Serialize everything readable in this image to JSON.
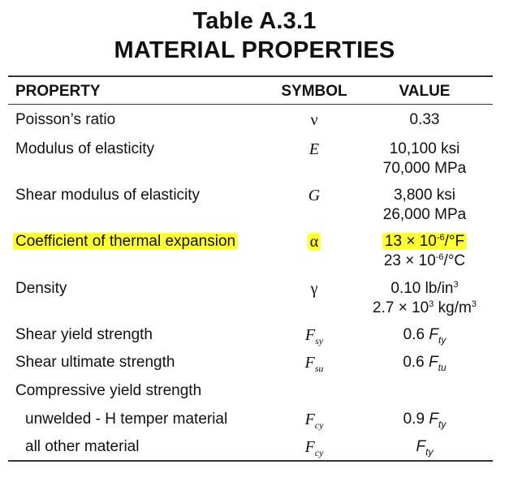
{
  "title_line1": "Table A.3.1",
  "title_line2": "MATERIAL PROPERTIES",
  "headers": {
    "property": "PROPERTY",
    "symbol": "SYMBOL",
    "value": "VALUE"
  },
  "highlight_color": "#ffff33",
  "rows": [
    {
      "property": "Poisson’s ratio",
      "symbol": "ν",
      "value": "0.33"
    },
    {
      "property": "Modulus of elasticity",
      "symbol": "E",
      "value_line1": "10,100 ksi",
      "value_line2": "70,000 MPa"
    },
    {
      "property": "Shear modulus of elasticity",
      "symbol": "G",
      "value_line1": "3,800 ksi",
      "value_line2": "26,000 MPa"
    },
    {
      "property": "Coefficient of thermal expansion",
      "symbol": "α",
      "value_line1_mant": "13 × 10",
      "value_line1_exp": "-6",
      "value_line1_unit": "/°F",
      "value_line2_mant": "23 × 10",
      "value_line2_exp": "-6",
      "value_line2_unit": "/°C",
      "highlighted": true
    },
    {
      "property": "Density",
      "symbol": "γ",
      "value_line1_base": "0.10 lb/in",
      "value_line1_exp": "3",
      "value_line2_mant": "2.7 × 10",
      "value_line2_exp": "3",
      "value_line2_unit": " kg/m",
      "value_line2_unit_exp": "3"
    },
    {
      "property": "Shear yield strength",
      "symbol_base": "F",
      "symbol_sub": "sy",
      "value_coef": "0.6 ",
      "value_base": "F",
      "value_sub": "ty"
    },
    {
      "property": "Shear ultimate strength",
      "symbol_base": "F",
      "symbol_sub": "su",
      "value_coef": "0.6 ",
      "value_base": "F",
      "value_sub": "tu"
    },
    {
      "property": "Compressive yield strength"
    },
    {
      "property": "unwelded - H temper material",
      "symbol_base": "F",
      "symbol_sub": "cy",
      "value_coef": "0.9 ",
      "value_base": "F",
      "value_sub": "ty"
    },
    {
      "property": "all other material",
      "symbol_base": "F",
      "symbol_sub": "cy",
      "value_base": "F",
      "value_sub": "ty"
    }
  ]
}
